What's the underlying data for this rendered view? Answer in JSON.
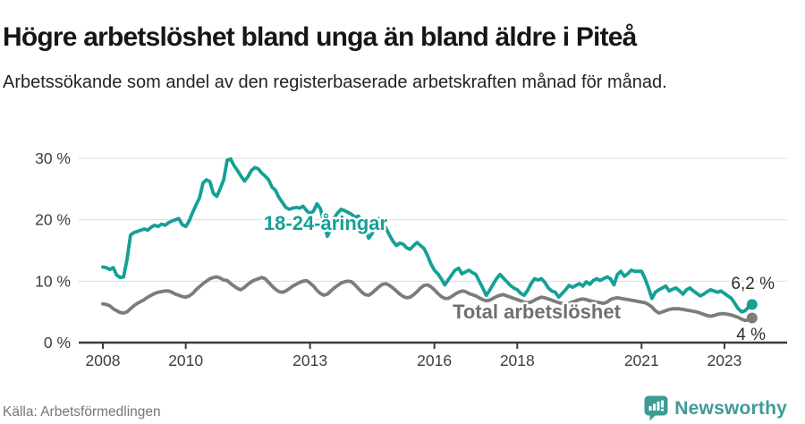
{
  "header": {
    "title": "Högre arbetslöshet bland unga än bland äldre i Piteå",
    "subtitle": "Arbetssökande som andel av den registerbaserade arbetskraften månad för månad."
  },
  "chart_data": {
    "type": "line",
    "title": "Högre arbetslöshet bland unga än bland äldre i Piteå",
    "subtitle": "Arbetssökande som andel av den registerbaserade arbetskraften månad för månad.",
    "frequency": "monthly",
    "x_start": "2008-01",
    "x_end": "2023-09",
    "x_ticks": [
      2008,
      2010,
      2013,
      2016,
      2018,
      2021,
      2023
    ],
    "y_ticks": [
      0,
      10,
      20,
      30
    ],
    "y_tick_suffix": " %",
    "ylim": [
      0,
      32
    ],
    "grid": "horizontal",
    "legend_position": "inline-labels",
    "series": [
      {
        "id": "18-24-aringar",
        "name": "18-24-åringar",
        "color": "#14a095",
        "end_label": "6,2 %",
        "end_value": 6.2,
        "values": [
          12.3,
          12.2,
          11.9,
          12.2,
          11.0,
          10.6,
          10.7,
          13.5,
          17.5,
          17.9,
          18.1,
          18.3,
          18.5,
          18.3,
          18.8,
          19.1,
          18.9,
          19.3,
          19.1,
          19.5,
          19.8,
          20.0,
          20.2,
          19.2,
          18.9,
          19.8,
          21.2,
          22.4,
          23.6,
          26.0,
          26.5,
          26.2,
          24.3,
          23.8,
          25.1,
          26.5,
          29.7,
          29.9,
          28.8,
          28.0,
          27.1,
          26.3,
          27.0,
          28.0,
          28.5,
          28.3,
          27.6,
          27.1,
          26.5,
          25.3,
          24.8,
          23.6,
          22.8,
          22.0,
          21.7,
          21.9,
          22.0,
          21.9,
          22.2,
          21.5,
          21.0,
          21.4,
          22.6,
          21.8,
          19.5,
          17.3,
          18.5,
          20.3,
          21.1,
          21.7,
          21.5,
          21.2,
          20.9,
          20.4,
          20.6,
          19.8,
          18.5,
          17.0,
          17.8,
          19.3,
          20.2,
          19.5,
          18.6,
          17.5,
          16.5,
          15.8,
          16.2,
          16.0,
          15.4,
          15.2,
          15.8,
          16.3,
          15.8,
          15.3,
          14.2,
          12.8,
          11.8,
          11.2,
          10.4,
          9.4,
          10.2,
          11.0,
          11.8,
          12.1,
          11.2,
          11.5,
          11.8,
          11.4,
          11.1,
          10.0,
          8.9,
          7.7,
          8.5,
          9.5,
          10.4,
          11.1,
          10.5,
          9.9,
          9.3,
          8.9,
          8.6,
          8.0,
          7.7,
          8.5,
          9.6,
          10.4,
          10.2,
          10.4,
          9.8,
          8.9,
          8.4,
          8.2,
          7.4,
          8.0,
          8.6,
          9.3,
          9.0,
          9.3,
          9.6,
          9.2,
          9.9,
          9.5,
          10.1,
          10.4,
          10.1,
          10.4,
          10.7,
          10.4,
          9.4,
          11.1,
          11.6,
          10.8,
          11.2,
          11.8,
          11.6,
          11.6,
          11.6,
          10.4,
          8.9,
          7.2,
          8.2,
          8.6,
          8.9,
          9.2,
          8.4,
          8.7,
          8.9,
          8.4,
          7.9,
          8.6,
          8.9,
          8.4,
          8.0,
          7.6,
          7.9,
          8.3,
          8.6,
          8.4,
          8.2,
          8.4,
          8.0,
          7.6,
          7.2,
          6.4,
          5.5,
          5.0,
          5.2,
          5.8,
          6.2
        ]
      },
      {
        "id": "total-arbetsloshet",
        "name": "Total arbetslöshet",
        "color": "#7c7c7c",
        "label_color": "#6f6f6f",
        "end_label": "4 %",
        "end_value": 4.0,
        "values": [
          6.3,
          6.2,
          6.0,
          5.5,
          5.2,
          4.9,
          4.8,
          5.0,
          5.5,
          6.0,
          6.4,
          6.7,
          7.0,
          7.4,
          7.7,
          8.0,
          8.2,
          8.3,
          8.4,
          8.4,
          8.2,
          7.9,
          7.7,
          7.5,
          7.4,
          7.6,
          8.0,
          8.6,
          9.1,
          9.6,
          10.0,
          10.4,
          10.6,
          10.7,
          10.5,
          10.2,
          10.1,
          9.6,
          9.2,
          8.8,
          8.6,
          9.0,
          9.5,
          9.9,
          10.2,
          10.4,
          10.6,
          10.4,
          9.8,
          9.2,
          8.7,
          8.3,
          8.2,
          8.4,
          8.8,
          9.2,
          9.5,
          9.8,
          10.0,
          10.1,
          9.7,
          9.2,
          8.5,
          8.0,
          7.7,
          7.9,
          8.4,
          8.9,
          9.3,
          9.7,
          9.9,
          10.0,
          9.9,
          9.4,
          8.8,
          8.2,
          7.8,
          7.7,
          8.1,
          8.6,
          9.1,
          9.5,
          9.6,
          9.3,
          8.9,
          8.4,
          7.9,
          7.5,
          7.3,
          7.4,
          7.8,
          8.3,
          8.9,
          9.3,
          9.4,
          9.1,
          8.6,
          8.0,
          7.5,
          7.2,
          7.2,
          7.5,
          7.9,
          8.2,
          8.4,
          8.3,
          8.0,
          7.8,
          7.6,
          7.3,
          7.0,
          6.8,
          6.9,
          7.2,
          7.5,
          7.7,
          7.8,
          7.6,
          7.4,
          7.2,
          7.0,
          6.8,
          6.6,
          6.5,
          6.6,
          6.9,
          7.2,
          7.4,
          7.3,
          7.1,
          6.9,
          6.7,
          6.5,
          6.4,
          6.3,
          6.4,
          6.6,
          6.8,
          7.0,
          7.1,
          7.0,
          6.8,
          6.7,
          6.6,
          6.5,
          6.4,
          6.6,
          7.0,
          7.2,
          7.3,
          7.2,
          7.1,
          7.0,
          6.9,
          6.8,
          6.7,
          6.6,
          6.5,
          6.2,
          5.8,
          5.2,
          4.8,
          5.0,
          5.2,
          5.4,
          5.5,
          5.5,
          5.5,
          5.4,
          5.3,
          5.2,
          5.1,
          5.0,
          4.8,
          4.6,
          4.4,
          4.3,
          4.4,
          4.6,
          4.7,
          4.7,
          4.6,
          4.5,
          4.3,
          4.1,
          3.8,
          3.6,
          3.7,
          4.0
        ]
      }
    ]
  },
  "footer": {
    "source": "Källa: Arbetsförmedlingen",
    "brand": "Newsworthy",
    "brand_color": "#3e9c94"
  }
}
